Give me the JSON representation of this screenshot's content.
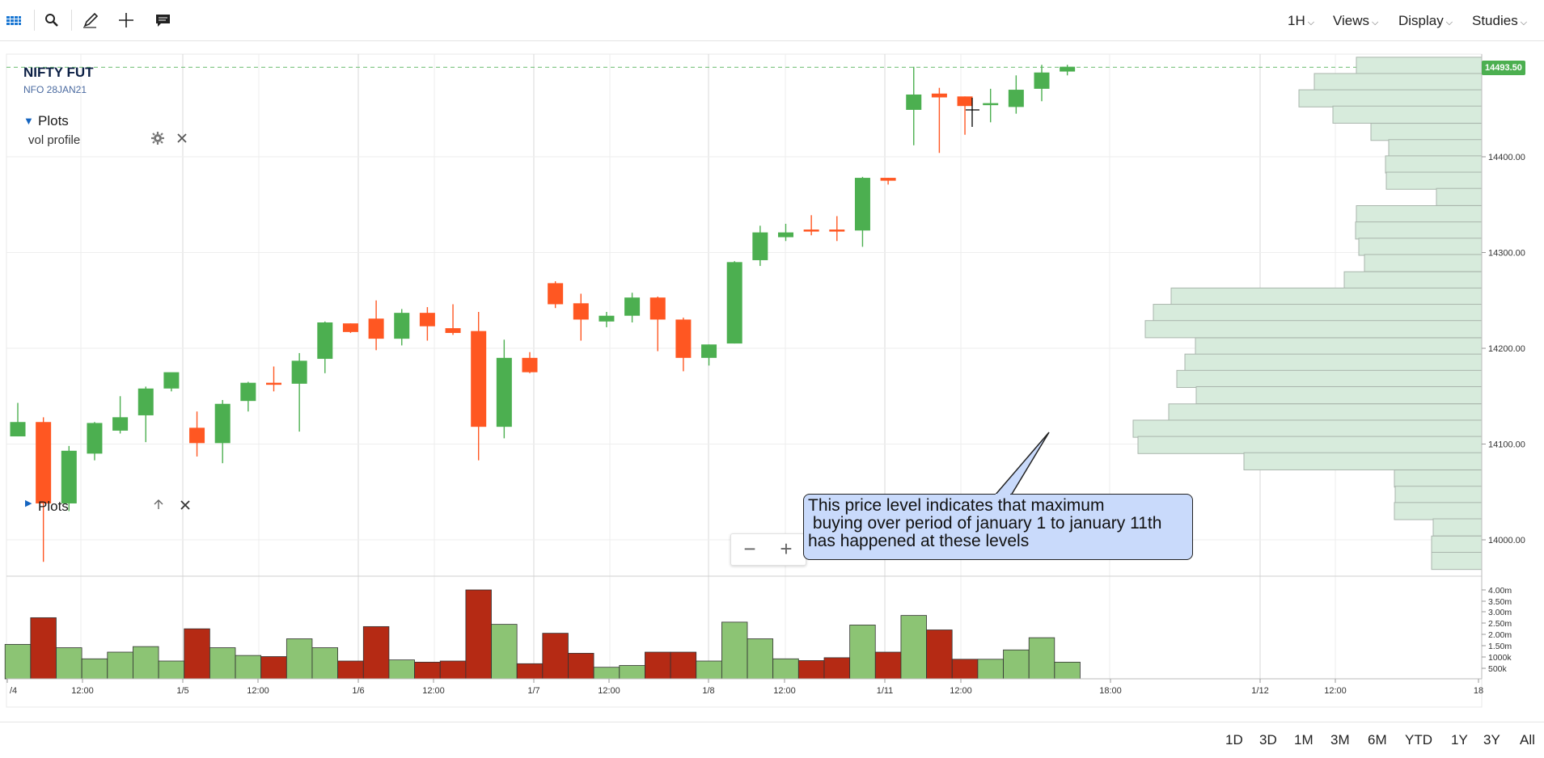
{
  "toolbar": {
    "left_icons": [
      "grid-icon",
      "search-icon",
      "pencil-icon",
      "crosshair-icon",
      "comment-icon"
    ],
    "menus": [
      "1H",
      "Views",
      "Display",
      "Studies"
    ]
  },
  "instrument": {
    "name": "NIFTY FUT",
    "sub": "NFO 28JAN21"
  },
  "plots_panel": {
    "label": "Plots",
    "item": "vol profile"
  },
  "volume_panel": {
    "label": "Plots"
  },
  "price_badge": "14493.50",
  "annotation": "This price level indicates that maximum\n buying over period of january 1 to january 11th\nhas happened at these levels",
  "zoom": {
    "minus": "−",
    "plus": "+"
  },
  "ranges": [
    "1D",
    "3D",
    "1M",
    "3M",
    "6M",
    "YTD",
    "1Y",
    "3Y",
    "All"
  ],
  "colors": {
    "up": "#4caf50",
    "down": "#ff5722",
    "vol_up": "#8cc474",
    "vol_down": "#b52a14",
    "profile": "#d7ebdc",
    "badge": "#4caf50",
    "callout": "#c9dafb"
  },
  "chart_data": {
    "type": "candlestick",
    "y_range": [
      13970,
      14510
    ],
    "y_ticks": [
      "14000.00",
      "14100.00",
      "14200.00",
      "14300.00",
      "14400.00"
    ],
    "x_ticks": [
      "/4",
      "12:00",
      "1/5",
      "12:00",
      "1/6",
      "12:00",
      "1/7",
      "12:00",
      "1/8",
      "12:00",
      "1/11",
      "12:00",
      "18:00",
      "1/12",
      "12:00",
      "18"
    ],
    "last_price": 14493.5,
    "candles": [
      {
        "o": 14108,
        "h": 14143,
        "l": 14108,
        "c": 14123
      },
      {
        "o": 14123,
        "h": 14128,
        "l": 13977,
        "c": 14038
      },
      {
        "o": 14038,
        "h": 14098,
        "l": 14030,
        "c": 14093
      },
      {
        "o": 14090,
        "h": 14123,
        "l": 14083,
        "c": 14122
      },
      {
        "o": 14114,
        "h": 14150,
        "l": 14111,
        "c": 14128
      },
      {
        "o": 14130,
        "h": 14160,
        "l": 14102,
        "c": 14158
      },
      {
        "o": 14158,
        "h": 14174,
        "l": 14155,
        "c": 14175
      },
      {
        "o": 14117,
        "h": 14134,
        "l": 14087,
        "c": 14101
      },
      {
        "o": 14101,
        "h": 14146,
        "l": 14080,
        "c": 14142
      },
      {
        "o": 14145,
        "h": 14165,
        "l": 14134,
        "c": 14164
      },
      {
        "o": 14164,
        "h": 14181,
        "l": 14155,
        "c": 14162
      },
      {
        "o": 14163,
        "h": 14195,
        "l": 14113,
        "c": 14187
      },
      {
        "o": 14189,
        "h": 14228,
        "l": 14174,
        "c": 14227
      },
      {
        "o": 14226,
        "h": 14226,
        "l": 14216,
        "c": 14217
      },
      {
        "o": 14231,
        "h": 14250,
        "l": 14198,
        "c": 14210
      },
      {
        "o": 14210,
        "h": 14241,
        "l": 14203,
        "c": 14237
      },
      {
        "o": 14237,
        "h": 14243,
        "l": 14208,
        "c": 14223
      },
      {
        "o": 14221,
        "h": 14246,
        "l": 14214,
        "c": 14216
      },
      {
        "o": 14218,
        "h": 14238,
        "l": 14083,
        "c": 14118
      },
      {
        "o": 14118,
        "h": 14209,
        "l": 14106,
        "c": 14190
      },
      {
        "o": 14190,
        "h": 14196,
        "l": 14174,
        "c": 14175
      },
      {
        "o": 14268,
        "h": 14270,
        "l": 14242,
        "c": 14246
      },
      {
        "o": 14247,
        "h": 14257,
        "l": 14208,
        "c": 14230
      },
      {
        "o": 14228,
        "h": 14238,
        "l": 14222,
        "c": 14234
      },
      {
        "o": 14234,
        "h": 14258,
        "l": 14227,
        "c": 14253
      },
      {
        "o": 14253,
        "h": 14254,
        "l": 14197,
        "c": 14230
      },
      {
        "o": 14230,
        "h": 14232,
        "l": 14176,
        "c": 14190
      },
      {
        "o": 14190,
        "h": 14204,
        "l": 14182,
        "c": 14204
      },
      {
        "o": 14205,
        "h": 14291,
        "l": 14205,
        "c": 14290
      },
      {
        "o": 14292,
        "h": 14328,
        "l": 14286,
        "c": 14321
      },
      {
        "o": 14316,
        "h": 14330,
        "l": 14312,
        "c": 14321
      },
      {
        "o": 14324,
        "h": 14339,
        "l": 14318,
        "c": 14323
      },
      {
        "o": 14324,
        "h": 14338,
        "l": 14312,
        "c": 14322
      },
      {
        "o": 14323,
        "h": 14379,
        "l": 14306,
        "c": 14378
      },
      {
        "o": 14378,
        "h": 14378,
        "l": 14371,
        "c": 14375
      },
      {
        "o": 14449,
        "h": 14494,
        "l": 14412,
        "c": 14465
      },
      {
        "o": 14466,
        "h": 14472,
        "l": 14404,
        "c": 14462
      },
      {
        "o": 14463,
        "h": 14463,
        "l": 14423,
        "c": 14453
      },
      {
        "o": 14455,
        "h": 14471,
        "l": 14436,
        "c": 14456
      },
      {
        "o": 14452,
        "h": 14485,
        "l": 14445,
        "c": 14470
      },
      {
        "o": 14471,
        "h": 14496,
        "l": 14458,
        "c": 14488
      },
      {
        "o": 14489,
        "h": 14496,
        "l": 14485,
        "c": 14494
      }
    ],
    "volume_ticks": [
      "4.00m",
      "3.50m",
      "3.00m",
      "2.50m",
      "2.00m",
      "1.50m",
      "1000k",
      "500k"
    ],
    "volumes": [
      1.55,
      2.75,
      1.4,
      0.9,
      1.2,
      1.45,
      0.8,
      2.25,
      1.4,
      1.05,
      1.0,
      1.8,
      1.4,
      0.8,
      2.35,
      0.85,
      0.75,
      0.8,
      4.0,
      2.45,
      0.68,
      2.05,
      1.15,
      0.52,
      0.6,
      1.2,
      1.2,
      0.8,
      2.55,
      1.8,
      0.9,
      0.82,
      0.95,
      2.42,
      1.2,
      2.85,
      2.2,
      0.88,
      0.88,
      1.3,
      1.85,
      0.75
    ],
    "volume_profile": [
      {
        "price": 14495,
        "width": 155
      },
      {
        "price": 14478,
        "width": 207
      },
      {
        "price": 14461,
        "width": 226
      },
      {
        "price": 14444,
        "width": 184
      },
      {
        "price": 14426,
        "width": 137
      },
      {
        "price": 14409,
        "width": 115
      },
      {
        "price": 14392,
        "width": 119
      },
      {
        "price": 14375,
        "width": 118
      },
      {
        "price": 14358,
        "width": 56
      },
      {
        "price": 14340,
        "width": 155
      },
      {
        "price": 14323,
        "width": 156
      },
      {
        "price": 14306,
        "width": 152
      },
      {
        "price": 14289,
        "width": 145
      },
      {
        "price": 14271,
        "width": 170
      },
      {
        "price": 14254,
        "width": 384
      },
      {
        "price": 14237,
        "width": 406
      },
      {
        "price": 14220,
        "width": 416
      },
      {
        "price": 14202,
        "width": 354
      },
      {
        "price": 14185,
        "width": 367
      },
      {
        "price": 14168,
        "width": 377
      },
      {
        "price": 14151,
        "width": 353
      },
      {
        "price": 14133,
        "width": 387
      },
      {
        "price": 14116,
        "width": 431
      },
      {
        "price": 14099,
        "width": 425
      },
      {
        "price": 14082,
        "width": 294
      },
      {
        "price": 14064,
        "width": 108
      },
      {
        "price": 14047,
        "width": 107
      },
      {
        "price": 14030,
        "width": 108
      },
      {
        "price": 14013,
        "width": 60
      },
      {
        "price": 13995,
        "width": 62
      },
      {
        "price": 13978,
        "width": 62
      }
    ]
  }
}
